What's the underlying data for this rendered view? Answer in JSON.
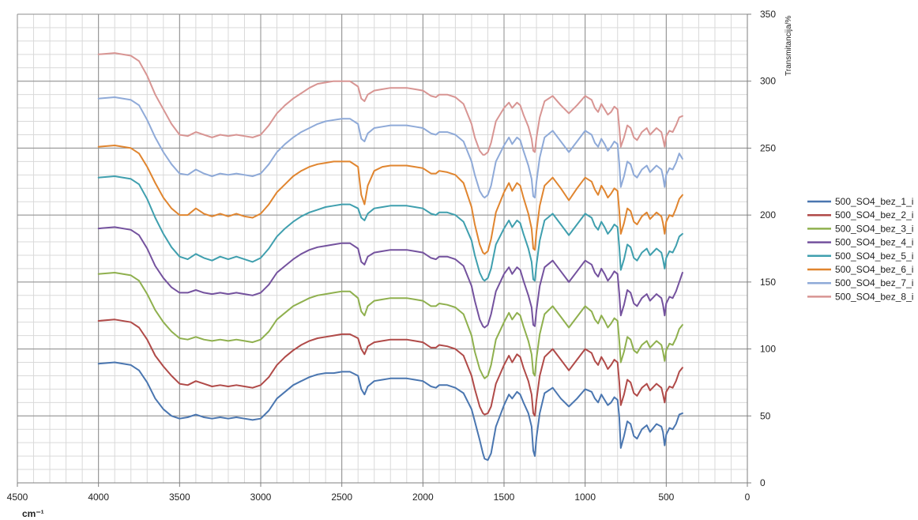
{
  "chart_data": {
    "type": "line",
    "xlabel": "cm⁻¹",
    "ylabel": "Transmitancija/%",
    "xlim": [
      4500,
      0
    ],
    "ylim": [
      0,
      350
    ],
    "x_reversed": true,
    "x_ticks": [
      4500,
      4000,
      3500,
      3000,
      2500,
      2000,
      1500,
      1000,
      500,
      0
    ],
    "y_ticks": [
      0,
      50,
      100,
      150,
      200,
      250,
      300,
      350
    ],
    "y_axis_side": "right",
    "grid": true,
    "legend_position": "right",
    "x": [
      4000,
      3900,
      3800,
      3750,
      3700,
      3650,
      3600,
      3550,
      3500,
      3450,
      3400,
      3350,
      3300,
      3250,
      3200,
      3150,
      3100,
      3050,
      3000,
      2950,
      2900,
      2850,
      2800,
      2750,
      2700,
      2650,
      2600,
      2550,
      2500,
      2450,
      2400,
      2380,
      2360,
      2340,
      2300,
      2250,
      2200,
      2150,
      2100,
      2050,
      2000,
      1950,
      1920,
      1900,
      1850,
      1800,
      1750,
      1700,
      1680,
      1650,
      1630,
      1620,
      1600,
      1580,
      1550,
      1500,
      1470,
      1450,
      1420,
      1400,
      1380,
      1350,
      1330,
      1320,
      1310,
      1300,
      1280,
      1250,
      1200,
      1150,
      1100,
      1050,
      1000,
      960,
      940,
      920,
      900,
      880,
      860,
      840,
      820,
      800,
      790,
      780,
      760,
      740,
      720,
      700,
      680,
      650,
      620,
      600,
      560,
      530,
      520,
      510,
      500,
      480,
      460,
      440,
      420,
      400
    ],
    "series": [
      {
        "name": "500_SO4_bez_1_i",
        "color": "#4a76b0",
        "values": [
          89,
          90,
          88,
          84,
          75,
          63,
          55,
          50,
          48,
          49,
          51,
          49,
          48,
          49,
          48,
          49,
          48,
          47,
          48,
          54,
          63,
          68,
          73,
          76,
          79,
          81,
          82,
          82,
          83,
          83,
          80,
          70,
          66,
          72,
          76,
          77,
          78,
          78,
          78,
          77,
          76,
          72,
          71,
          73,
          73,
          71,
          67,
          55,
          46,
          32,
          22,
          18,
          17,
          22,
          42,
          58,
          66,
          63,
          68,
          66,
          60,
          52,
          42,
          24,
          20,
          34,
          52,
          67,
          71,
          63,
          57,
          63,
          70,
          68,
          63,
          60,
          66,
          62,
          58,
          60,
          64,
          62,
          50,
          26,
          35,
          46,
          44,
          35,
          33,
          40,
          43,
          38,
          44,
          42,
          38,
          28,
          36,
          41,
          40,
          44,
          51,
          52
        ]
      },
      {
        "name": "500_SO4_bez_2_i",
        "color": "#b04a48",
        "values": [
          121,
          122,
          120,
          116,
          107,
          95,
          87,
          80,
          74,
          73,
          76,
          74,
          72,
          73,
          72,
          73,
          72,
          71,
          73,
          79,
          88,
          94,
          99,
          103,
          106,
          108,
          109,
          110,
          111,
          111,
          108,
          100,
          96,
          102,
          105,
          106,
          107,
          107,
          107,
          106,
          105,
          101,
          101,
          103,
          102,
          100,
          95,
          80,
          70,
          57,
          52,
          51,
          52,
          57,
          74,
          88,
          95,
          90,
          96,
          94,
          86,
          76,
          66,
          52,
          50,
          62,
          80,
          94,
          100,
          92,
          84,
          92,
          100,
          97,
          91,
          88,
          94,
          90,
          85,
          88,
          92,
          90,
          76,
          58,
          66,
          77,
          75,
          67,
          65,
          71,
          74,
          69,
          74,
          71,
          66,
          60,
          68,
          72,
          71,
          76,
          83,
          86
        ]
      },
      {
        "name": "500_SO4_bez_3_i",
        "color": "#8fb04e",
        "values": [
          156,
          157,
          155,
          151,
          141,
          129,
          120,
          113,
          108,
          107,
          109,
          107,
          106,
          107,
          106,
          107,
          106,
          105,
          107,
          113,
          122,
          127,
          132,
          135,
          138,
          140,
          141,
          142,
          143,
          143,
          138,
          128,
          125,
          132,
          136,
          137,
          138,
          138,
          138,
          137,
          136,
          132,
          132,
          134,
          133,
          131,
          126,
          110,
          98,
          85,
          80,
          78,
          80,
          88,
          107,
          120,
          127,
          122,
          127,
          125,
          117,
          106,
          96,
          82,
          80,
          93,
          111,
          126,
          132,
          124,
          116,
          124,
          132,
          128,
          122,
          119,
          125,
          121,
          116,
          119,
          123,
          121,
          107,
          90,
          98,
          109,
          107,
          99,
          97,
          103,
          106,
          101,
          106,
          103,
          98,
          91,
          99,
          104,
          103,
          108,
          115,
          118
        ]
      },
      {
        "name": "500_SO4_bez_4_i",
        "color": "#74529e",
        "values": [
          190,
          191,
          189,
          185,
          175,
          162,
          153,
          146,
          142,
          142,
          144,
          142,
          141,
          142,
          141,
          142,
          141,
          140,
          142,
          148,
          157,
          162,
          167,
          171,
          174,
          176,
          177,
          178,
          179,
          179,
          175,
          165,
          163,
          169,
          172,
          173,
          174,
          174,
          174,
          173,
          172,
          168,
          167,
          169,
          169,
          167,
          162,
          147,
          136,
          122,
          117,
          116,
          118,
          126,
          143,
          156,
          161,
          156,
          161,
          159,
          151,
          140,
          131,
          118,
          117,
          129,
          147,
          161,
          166,
          158,
          150,
          158,
          166,
          163,
          157,
          154,
          160,
          156,
          151,
          154,
          158,
          156,
          142,
          125,
          133,
          144,
          142,
          134,
          132,
          138,
          141,
          136,
          141,
          138,
          133,
          125,
          134,
          139,
          138,
          143,
          150,
          157
        ]
      },
      {
        "name": "500_SO4_bez_5_i",
        "color": "#3f9fae",
        "values": [
          228,
          229,
          227,
          223,
          212,
          198,
          186,
          176,
          169,
          167,
          171,
          168,
          166,
          169,
          167,
          169,
          167,
          165,
          168,
          175,
          184,
          190,
          195,
          199,
          202,
          204,
          206,
          207,
          208,
          208,
          205,
          198,
          196,
          201,
          205,
          206,
          207,
          207,
          207,
          206,
          205,
          201,
          200,
          202,
          202,
          200,
          195,
          181,
          170,
          157,
          152,
          151,
          153,
          160,
          178,
          190,
          196,
          191,
          196,
          194,
          186,
          175,
          165,
          152,
          151,
          163,
          181,
          196,
          201,
          193,
          185,
          193,
          201,
          198,
          192,
          189,
          195,
          191,
          186,
          189,
          193,
          191,
          177,
          159,
          167,
          178,
          176,
          168,
          166,
          172,
          175,
          170,
          175,
          172,
          167,
          160,
          168,
          173,
          172,
          177,
          184,
          186
        ]
      },
      {
        "name": "500_SO4_bez_6_i",
        "color": "#e0852f",
        "values": [
          251,
          252,
          250,
          246,
          236,
          224,
          213,
          205,
          200,
          200,
          205,
          201,
          199,
          201,
          199,
          201,
          199,
          198,
          201,
          208,
          217,
          223,
          229,
          233,
          236,
          238,
          239,
          240,
          240,
          240,
          236,
          215,
          208,
          222,
          233,
          236,
          237,
          237,
          237,
          236,
          235,
          231,
          231,
          233,
          232,
          230,
          224,
          206,
          193,
          178,
          172,
          171,
          173,
          182,
          202,
          217,
          224,
          218,
          224,
          222,
          213,
          201,
          190,
          175,
          174,
          188,
          207,
          222,
          228,
          220,
          211,
          220,
          228,
          225,
          219,
          215,
          222,
          218,
          213,
          216,
          220,
          218,
          204,
          186,
          194,
          205,
          203,
          195,
          193,
          199,
          202,
          197,
          202,
          199,
          194,
          186,
          195,
          200,
          199,
          205,
          212,
          215
        ]
      },
      {
        "name": "500_SO4_bez_7_i",
        "color": "#8faad8",
        "values": [
          287,
          288,
          286,
          282,
          271,
          258,
          247,
          238,
          231,
          230,
          234,
          231,
          229,
          231,
          230,
          231,
          230,
          229,
          231,
          238,
          247,
          253,
          258,
          262,
          265,
          268,
          270,
          271,
          272,
          272,
          268,
          257,
          255,
          261,
          265,
          266,
          267,
          267,
          267,
          266,
          265,
          261,
          260,
          262,
          262,
          260,
          255,
          240,
          230,
          218,
          214,
          213,
          215,
          222,
          240,
          252,
          258,
          253,
          258,
          256,
          248,
          237,
          227,
          214,
          213,
          225,
          243,
          258,
          263,
          255,
          247,
          255,
          263,
          260,
          254,
          251,
          257,
          253,
          248,
          251,
          255,
          253,
          239,
          221,
          229,
          240,
          238,
          230,
          228,
          234,
          237,
          232,
          237,
          234,
          229,
          221,
          230,
          235,
          234,
          239,
          246,
          242
        ]
      },
      {
        "name": "500_SO4_bez_8_i",
        "color": "#d89593",
        "values": [
          320,
          321,
          319,
          315,
          304,
          290,
          279,
          268,
          260,
          259,
          262,
          260,
          258,
          260,
          259,
          260,
          259,
          258,
          260,
          267,
          276,
          282,
          287,
          291,
          295,
          298,
          299,
          300,
          300,
          300,
          296,
          287,
          285,
          290,
          293,
          294,
          295,
          295,
          295,
          294,
          293,
          289,
          288,
          290,
          290,
          288,
          283,
          268,
          258,
          248,
          245,
          245,
          247,
          254,
          270,
          280,
          284,
          280,
          284,
          282,
          275,
          266,
          257,
          248,
          247,
          258,
          273,
          285,
          289,
          282,
          276,
          282,
          289,
          286,
          280,
          277,
          283,
          279,
          275,
          277,
          281,
          279,
          266,
          251,
          258,
          267,
          265,
          258,
          256,
          262,
          265,
          260,
          265,
          262,
          257,
          251,
          259,
          263,
          262,
          267,
          273,
          274
        ]
      }
    ]
  }
}
